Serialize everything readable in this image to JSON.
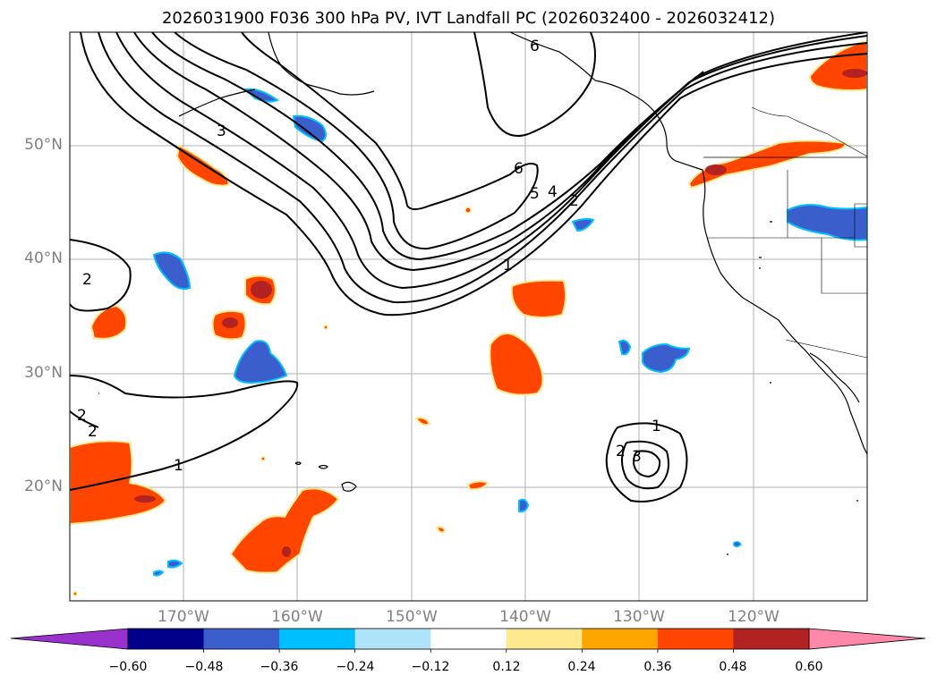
{
  "title": "2026031900 F036 300 hPa PV, IVT Landfall PC (2026032400 - 2026032412)",
  "map": {
    "projection": "PlateCarree",
    "lon_range": [
      -180,
      -110
    ],
    "lat_range": [
      10,
      60
    ],
    "gridlines": true,
    "lat_ticks": [
      {
        "value": 20,
        "label": "20°N"
      },
      {
        "value": 30,
        "label": "30°N"
      },
      {
        "value": 40,
        "label": "40°N"
      },
      {
        "value": 50,
        "label": "50°N"
      }
    ],
    "lon_ticks": [
      {
        "value": -170,
        "label": "170°W"
      },
      {
        "value": -160,
        "label": "160°W"
      },
      {
        "value": -150,
        "label": "150°W"
      },
      {
        "value": -140,
        "label": "140°W"
      },
      {
        "value": -130,
        "label": "130°W"
      },
      {
        "value": -120,
        "label": "120°W"
      }
    ],
    "pv_contours": [
      1,
      2,
      3,
      4,
      5,
      6
    ],
    "contour_labels": [
      "3",
      "6",
      "6",
      "5",
      "4",
      "2",
      "1",
      "2",
      "1",
      "2",
      "2",
      "1",
      "2",
      "3"
    ]
  },
  "colorbar": {
    "labels": [
      "−0.60",
      "−0.48",
      "−0.36",
      "−0.24",
      "−0.12",
      "0.12",
      "0.24",
      "0.36",
      "0.48",
      "0.60"
    ],
    "colors": [
      "#9932cc",
      "#00008b",
      "#3a5fcd",
      "#00bfff",
      "#ade4fa",
      "#ffffff",
      "#fee98f",
      "#ffa500",
      "#ff4500",
      "#b22222",
      "#ff88aa"
    ],
    "extend": "both"
  }
}
